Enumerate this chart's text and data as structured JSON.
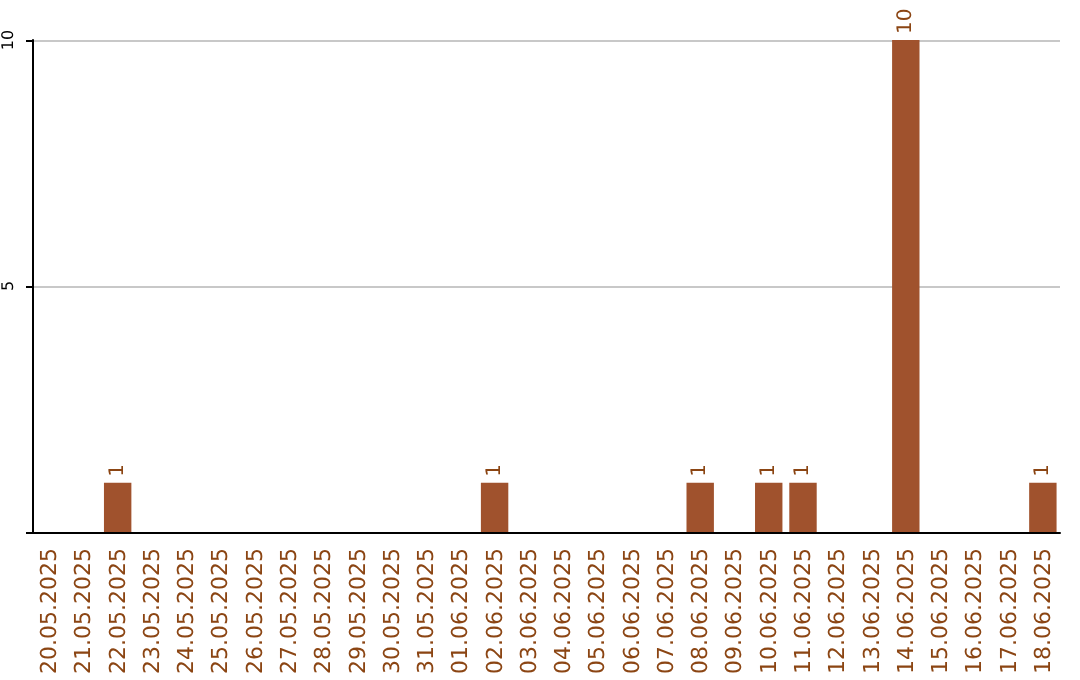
{
  "chart_data": {
    "type": "bar",
    "categories": [
      "20.05.2025",
      "21.05.2025",
      "22.05.2025",
      "23.05.2025",
      "24.05.2025",
      "25.05.2025",
      "26.05.2025",
      "27.05.2025",
      "28.05.2025",
      "29.05.2025",
      "30.05.2025",
      "31.05.2025",
      "01.06.2025",
      "02.06.2025",
      "03.06.2025",
      "04.06.2025",
      "05.06.2025",
      "06.06.2025",
      "07.06.2025",
      "08.06.2025",
      "09.06.2025",
      "10.06.2025",
      "11.06.2025",
      "12.06.2025",
      "13.06.2025",
      "14.06.2025",
      "15.06.2025",
      "16.06.2025",
      "17.06.2025",
      "18.06.2025"
    ],
    "values": [
      0,
      0,
      1,
      0,
      0,
      0,
      0,
      0,
      0,
      0,
      0,
      0,
      0,
      1,
      0,
      0,
      0,
      0,
      0,
      1,
      0,
      1,
      1,
      0,
      0,
      10,
      0,
      0,
      0,
      1
    ],
    "value_labels": [
      null,
      null,
      "1",
      null,
      null,
      null,
      null,
      null,
      null,
      null,
      null,
      null,
      null,
      "1",
      null,
      null,
      null,
      null,
      null,
      "1",
      null,
      "1",
      "1",
      null,
      null,
      "10",
      null,
      null,
      null,
      "1"
    ],
    "color": "#a0522d",
    "ylim": [
      0,
      10
    ],
    "yticks": [
      {
        "value": 0,
        "label": null
      },
      5,
      10
    ],
    "grid": "y"
  }
}
